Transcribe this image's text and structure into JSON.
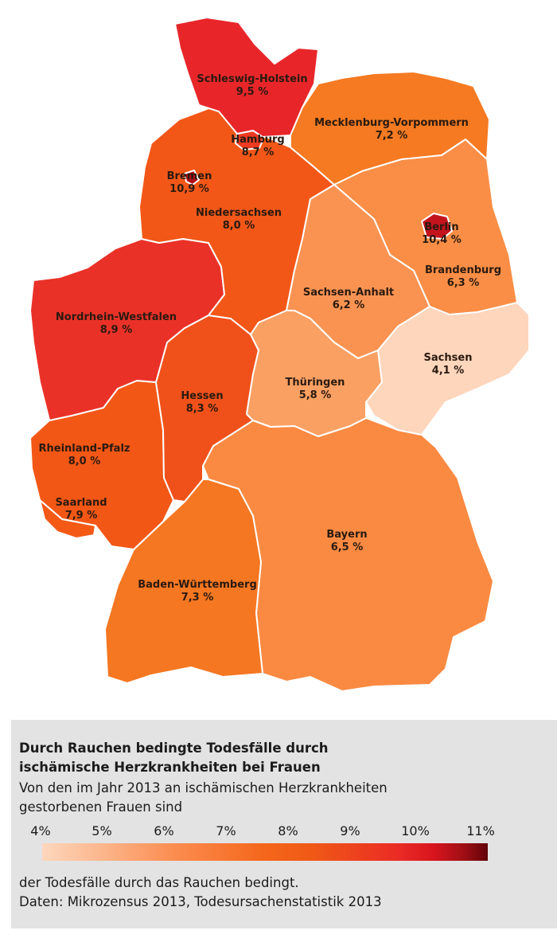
{
  "map": {
    "states": [
      {
        "id": "SH",
        "name": "Schleswig-Holstein",
        "value": "9,5 %",
        "color": "#e8262a"
      },
      {
        "id": "HH",
        "name": "Hamburg",
        "value": "8,7 %",
        "color": "#ec3b22"
      },
      {
        "id": "HB",
        "name": "Bremen",
        "value": "10,9 %",
        "color": "#b01018"
      },
      {
        "id": "NI",
        "name": "Niedersachsen",
        "value": "8,0 %",
        "color": "#f25718"
      },
      {
        "id": "MV",
        "name": "Mecklenburg-Vorpommern",
        "value": "7,2 %",
        "color": "#f57a22"
      },
      {
        "id": "BE",
        "name": "Berlin",
        "value": "10,4 %",
        "color": "#c3141e"
      },
      {
        "id": "BB",
        "name": "Brandenburg",
        "value": "6,3 %",
        "color": "#fa8e46"
      },
      {
        "id": "ST",
        "name": "Sachsen-Anhalt",
        "value": "6,2 %",
        "color": "#fa9352"
      },
      {
        "id": "SN",
        "name": "Sachsen",
        "value": "4,1 %",
        "color": "#fed6bc"
      },
      {
        "id": "TH",
        "name": "Thüringen",
        "value": "5,8 %",
        "color": "#fba063"
      },
      {
        "id": "NW",
        "name": "Nordrhein-Westfalen",
        "value": "8,9 %",
        "color": "#ea3128"
      },
      {
        "id": "HE",
        "name": "Hessen",
        "value": "8,3 %",
        "color": "#f0511a"
      },
      {
        "id": "RP",
        "name": "Rheinland-Pfalz",
        "value": "8,0 %",
        "color": "#f35716"
      },
      {
        "id": "SL",
        "name": "Saarland",
        "value": "7,9 %",
        "color": "#f45a16"
      },
      {
        "id": "BW",
        "name": "Baden-Württemberg",
        "value": "7,3 %",
        "color": "#f57722"
      },
      {
        "id": "BY",
        "name": "Bayern",
        "value": "6,5 %",
        "color": "#fa8a42"
      }
    ]
  },
  "legend": {
    "title_line1": "Durch Rauchen bedingte Todesfälle durch",
    "title_line2": "ischämische Herzkrankheiten bei Frauen",
    "subtitle_line1": "Von den im Jahr 2013 an ischämischen Herzkrankheiten",
    "subtitle_line2": "gestorbenen Frauen sind",
    "ticks": [
      "4%",
      "5%",
      "6%",
      "7%",
      "8%",
      "9%",
      "10%",
      "11%"
    ],
    "footer_line1": "der Todesfälle durch das Rauchen bedingt.",
    "footer_line2": "Daten: Mikrozensus 2013, Todesursachenstatistik 2013",
    "scale_colors": [
      "#fdd7bd",
      "#fb8c4f",
      "#f4661a",
      "#ea2b25",
      "#620209"
    ]
  }
}
